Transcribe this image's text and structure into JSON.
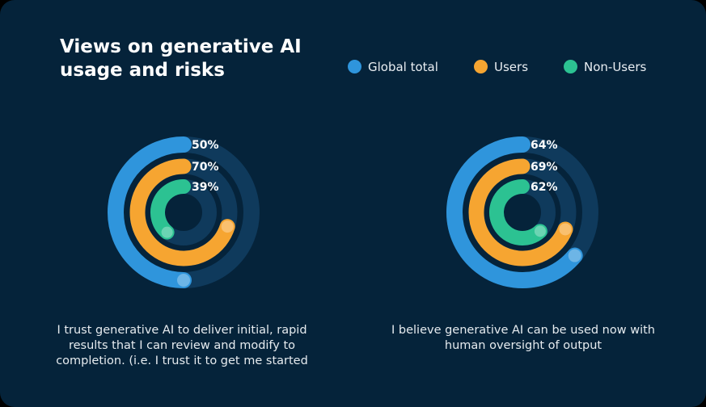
{
  "title": "Views on generative AI usage and risks",
  "legend": [
    {
      "label": "Global total",
      "color": "#2f95dc"
    },
    {
      "label": "Users",
      "color": "#f6a531"
    },
    {
      "label": "Non-Users",
      "color": "#2cc292"
    }
  ],
  "chart_data": [
    {
      "type": "radial-bar",
      "categories": [
        "Global total",
        "Users",
        "Non-Users"
      ],
      "values": [
        50,
        70,
        39
      ],
      "labels": [
        "50%",
        "70%",
        "39%"
      ],
      "caption": "I trust generative AI to deliver initial, rapid results that I can review and modify to completion. (i.e. I trust it to get me started"
    },
    {
      "type": "radial-bar",
      "categories": [
        "Global total",
        "Users",
        "Non-Users"
      ],
      "values": [
        64,
        69,
        62
      ],
      "labels": [
        "64%",
        "69%",
        "62%"
      ],
      "caption": "I believe generative AI can be used now with human oversight of output"
    }
  ]
}
